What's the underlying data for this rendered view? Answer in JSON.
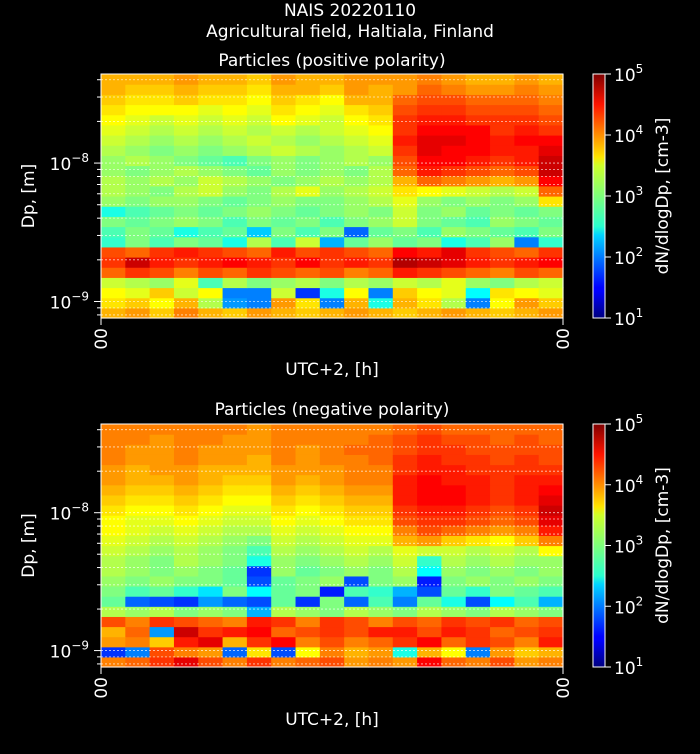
{
  "figure": {
    "title_line1": "NAIS 20220110",
    "title_line2": "Agricultural field, Haltiala, Finland"
  },
  "colors": {
    "background": "#000000",
    "text": "#ffffff",
    "colormap": "jet"
  },
  "chart_data": [
    {
      "type": "heatmap",
      "title": "Particles (positive polarity)",
      "xlabel": "UTC+2, [h]",
      "ylabel": "Dp, [m]",
      "x_tick_labels": [
        "00",
        "00"
      ],
      "y_scale": "log",
      "y_tick_labels": [
        "10^-9",
        "10^-8"
      ],
      "y_ticks": [
        1e-09,
        1e-08
      ],
      "ylim": [
        7.6e-10,
        4.4e-08
      ],
      "colorbar": {
        "label": "dN/dlogDp, [cm-3]",
        "scale": "log",
        "range": [
          10,
          100000
        ],
        "tick_labels": [
          "10^1",
          "10^2",
          "10^3",
          "10^4",
          "10^5"
        ]
      },
      "grid": true,
      "n_time_bins": 19,
      "n_size_bins": 24,
      "log10_values_small_to_large_size": [
        [
          3.8,
          3.9,
          3.7,
          4.0,
          3.8,
          3.7,
          3.9,
          3.8,
          3.7,
          3.8,
          3.9,
          3.8,
          3.7,
          3.8,
          3.9,
          3.8,
          3.7,
          3.8,
          3.9
        ],
        [
          3.6,
          3.7,
          3.5,
          3.8,
          3.2,
          2.1,
          2.0,
          3.9,
          3.6,
          2.0,
          3.8,
          2.6,
          3.8,
          3.6,
          3.2,
          2.0,
          3.5,
          3.9,
          3.7
        ],
        [
          3.5,
          3.4,
          3.7,
          3.3,
          3.5,
          2.0,
          2.0,
          3.3,
          1.7,
          2.6,
          3.5,
          2.0,
          3.7,
          3.5,
          3.4,
          2.5,
          3.6,
          3.5,
          3.4
        ],
        [
          3.3,
          3.2,
          3.1,
          3.4,
          2.8,
          3.2,
          3.0,
          3.1,
          3.2,
          3.0,
          3.2,
          3.1,
          3.3,
          3.2,
          3.4,
          3.1,
          3.0,
          3.2,
          3.3
        ],
        [
          4.1,
          4.3,
          4.2,
          4.0,
          4.2,
          4.1,
          4.3,
          4.2,
          4.1,
          4.2,
          4.0,
          4.1,
          4.4,
          4.3,
          4.2,
          4.1,
          4.0,
          4.2,
          4.1
        ],
        [
          4.3,
          4.7,
          4.4,
          4.3,
          4.4,
          4.5,
          4.4,
          4.3,
          4.5,
          4.3,
          4.4,
          4.3,
          4.8,
          4.7,
          4.6,
          4.4,
          4.3,
          4.4,
          4.5
        ],
        [
          4.2,
          4.1,
          4.3,
          4.4,
          4.3,
          4.2,
          4.1,
          4.4,
          4.2,
          4.3,
          4.2,
          4.1,
          4.5,
          4.4,
          4.6,
          4.3,
          4.2,
          4.1,
          4.3
        ],
        [
          2.7,
          3.0,
          2.8,
          3.0,
          2.9,
          2.6,
          3.2,
          2.8,
          3.3,
          2.2,
          2.9,
          3.1,
          2.9,
          3.0,
          2.6,
          2.8,
          3.1,
          2.0,
          2.7
        ],
        [
          2.8,
          3.0,
          2.9,
          2.6,
          2.8,
          2.9,
          2.3,
          3.0,
          2.8,
          3.0,
          1.9,
          2.9,
          3.0,
          2.8,
          3.1,
          3.0,
          2.9,
          2.8,
          3.0
        ],
        [
          3.0,
          2.9,
          3.0,
          3.1,
          3.0,
          2.8,
          3.0,
          2.9,
          3.0,
          2.8,
          3.0,
          3.1,
          3.3,
          3.0,
          2.9,
          2.8,
          3.1,
          3.0,
          2.9
        ],
        [
          2.6,
          2.8,
          2.9,
          3.0,
          2.9,
          3.0,
          3.1,
          3.0,
          2.9,
          3.0,
          3.1,
          3.0,
          3.3,
          3.0,
          3.1,
          2.9,
          3.0,
          2.9,
          3.0
        ],
        [
          3.1,
          3.0,
          3.1,
          3.1,
          3.0,
          2.9,
          3.0,
          3.1,
          3.0,
          3.0,
          3.1,
          3.2,
          3.4,
          3.1,
          3.0,
          3.1,
          3.0,
          3.1,
          3.6
        ],
        [
          3.2,
          3.1,
          3.0,
          3.2,
          3.3,
          3.1,
          3.0,
          3.2,
          3.4,
          3.1,
          3.2,
          3.3,
          3.6,
          3.5,
          3.4,
          3.3,
          3.2,
          3.3,
          4.1
        ],
        [
          3.2,
          3.1,
          3.2,
          3.1,
          3.3,
          3.2,
          3.1,
          3.0,
          3.1,
          3.2,
          3.1,
          3.2,
          3.8,
          4.1,
          4.0,
          3.9,
          3.8,
          3.9,
          4.5
        ],
        [
          3.1,
          3.0,
          3.1,
          3.2,
          3.1,
          3.0,
          2.9,
          3.1,
          3.0,
          3.1,
          3.0,
          3.2,
          4.1,
          4.4,
          4.3,
          4.2,
          4.1,
          4.2,
          4.7
        ],
        [
          3.1,
          3.2,
          3.1,
          3.0,
          2.9,
          2.8,
          3.0,
          3.1,
          3.0,
          3.1,
          3.2,
          3.1,
          4.2,
          4.5,
          4.5,
          4.4,
          4.3,
          4.4,
          4.7
        ],
        [
          3.2,
          3.1,
          3.0,
          3.1,
          3.0,
          3.1,
          3.2,
          3.3,
          3.2,
          3.1,
          3.2,
          3.3,
          4.3,
          4.6,
          4.5,
          4.5,
          4.4,
          4.4,
          4.6
        ],
        [
          3.3,
          3.2,
          3.1,
          3.2,
          3.1,
          3.2,
          3.3,
          3.2,
          3.1,
          3.2,
          3.3,
          3.4,
          4.4,
          4.6,
          4.6,
          4.5,
          4.4,
          4.5,
          4.5
        ],
        [
          3.4,
          3.3,
          3.2,
          3.3,
          3.2,
          3.3,
          3.2,
          3.3,
          3.2,
          3.3,
          3.4,
          3.5,
          4.3,
          4.5,
          4.5,
          4.5,
          4.3,
          4.4,
          4.3
        ],
        [
          3.5,
          3.4,
          3.3,
          3.4,
          3.3,
          3.4,
          3.3,
          3.5,
          3.4,
          3.3,
          3.5,
          3.6,
          4.3,
          4.4,
          4.4,
          4.3,
          4.3,
          4.3,
          4.2
        ],
        [
          3.6,
          3.5,
          3.5,
          3.5,
          3.4,
          3.5,
          3.4,
          3.6,
          3.5,
          3.4,
          3.6,
          3.7,
          4.2,
          4.3,
          4.3,
          4.2,
          4.2,
          4.2,
          4.1
        ],
        [
          3.7,
          3.6,
          3.6,
          3.7,
          3.6,
          3.6,
          3.5,
          3.7,
          3.6,
          3.5,
          3.8,
          3.8,
          4.1,
          4.2,
          4.2,
          4.1,
          4.1,
          4.1,
          4.0
        ],
        [
          3.8,
          3.7,
          3.7,
          3.8,
          3.7,
          3.7,
          3.6,
          3.8,
          3.8,
          3.7,
          3.9,
          3.8,
          3.9,
          4.1,
          4.0,
          3.9,
          3.9,
          4.0,
          3.9
        ],
        [
          3.8,
          3.8,
          3.8,
          3.9,
          3.8,
          3.8,
          3.7,
          3.9,
          3.8,
          3.8,
          3.9,
          3.9,
          3.9,
          4.0,
          3.9,
          3.8,
          3.8,
          3.9,
          3.8
        ]
      ]
    },
    {
      "type": "heatmap",
      "title": "Particles (negative polarity)",
      "xlabel": "UTC+2, [h]",
      "ylabel": "Dp, [m]",
      "x_tick_labels": [
        "00",
        "00"
      ],
      "y_scale": "log",
      "y_tick_labels": [
        "10^-9",
        "10^-8"
      ],
      "y_ticks": [
        1e-09,
        1e-08
      ],
      "ylim": [
        7.6e-10,
        4.4e-08
      ],
      "colorbar": {
        "label": "dN/dlogDp, [cm-3]",
        "scale": "log",
        "range": [
          10,
          100000
        ],
        "tick_labels": [
          "10^1",
          "10^2",
          "10^3",
          "10^4",
          "10^5"
        ]
      },
      "grid": true,
      "n_time_bins": 19,
      "n_size_bins": 24,
      "log10_values_small_to_large_size": [
        [
          4.0,
          4.1,
          4.3,
          4.6,
          4.2,
          4.0,
          4.3,
          4.0,
          4.1,
          4.2,
          3.9,
          4.0,
          3.9,
          4.5,
          4.1,
          4.0,
          4.2,
          3.9,
          4.0
        ],
        [
          1.7,
          2.0,
          4.2,
          4.0,
          3.9,
          1.9,
          3.6,
          1.8,
          3.5,
          4.0,
          3.8,
          3.9,
          2.6,
          3.8,
          3.5,
          2.0,
          3.9,
          3.7,
          3.8
        ],
        [
          3.9,
          4.0,
          3.7,
          4.4,
          4.6,
          3.8,
          4.3,
          4.5,
          4.0,
          4.2,
          4.0,
          4.1,
          4.3,
          4.5,
          4.1,
          4.3,
          4.2,
          4.0,
          4.4
        ],
        [
          3.8,
          4.1,
          2.1,
          4.7,
          4.3,
          4.4,
          4.5,
          4.1,
          4.2,
          4.3,
          4.2,
          4.4,
          4.4,
          4.2,
          4.4,
          4.3,
          4.1,
          4.2,
          4.3
        ],
        [
          4.2,
          4.0,
          4.3,
          4.2,
          4.1,
          4.0,
          4.4,
          4.3,
          4.0,
          4.3,
          4.2,
          4.0,
          4.2,
          4.1,
          4.3,
          4.2,
          4.3,
          4.1,
          4.2
        ],
        [
          3.2,
          3.1,
          3.2,
          3.0,
          3.1,
          3.0,
          2.2,
          3.2,
          3.1,
          3.0,
          3.2,
          3.1,
          3.0,
          3.2,
          3.1,
          3.0,
          3.2,
          3.1,
          3.0
        ],
        [
          2.9,
          1.9,
          1.8,
          1.7,
          2.1,
          1.9,
          1.8,
          2.9,
          1.7,
          3.0,
          1.9,
          2.8,
          2.0,
          2.9,
          2.6,
          1.8,
          2.5,
          2.8,
          2.2
        ],
        [
          3.0,
          2.8,
          2.9,
          2.7,
          2.4,
          3.0,
          2.5,
          2.9,
          3.0,
          1.6,
          2.8,
          2.7,
          2.2,
          1.8,
          2.9,
          2.7,
          3.0,
          2.9,
          2.8
        ],
        [
          3.1,
          3.0,
          3.1,
          3.0,
          3.0,
          2.9,
          1.8,
          2.9,
          3.0,
          3.1,
          1.8,
          3.0,
          3.1,
          1.6,
          3.0,
          3.1,
          3.0,
          3.1,
          3.0
        ],
        [
          3.2,
          3.1,
          3.0,
          3.1,
          3.0,
          2.9,
          1.7,
          3.1,
          2.9,
          3.0,
          3.1,
          3.0,
          3.2,
          2.5,
          3.1,
          3.0,
          3.1,
          3.0,
          3.1
        ],
        [
          3.2,
          3.1,
          3.0,
          3.2,
          3.1,
          3.0,
          2.6,
          3.1,
          3.0,
          3.1,
          3.2,
          3.1,
          3.3,
          2.7,
          3.2,
          3.1,
          3.2,
          3.1,
          3.1
        ],
        [
          3.3,
          3.2,
          3.1,
          3.2,
          3.1,
          3.0,
          2.8,
          3.2,
          3.1,
          3.2,
          3.3,
          3.2,
          3.4,
          3.3,
          3.3,
          3.2,
          3.3,
          3.2,
          3.5
        ],
        [
          3.4,
          3.3,
          3.2,
          3.3,
          3.2,
          3.1,
          3.0,
          3.3,
          3.2,
          3.3,
          3.4,
          3.4,
          3.8,
          3.9,
          3.7,
          3.6,
          3.5,
          3.7,
          4.0
        ],
        [
          3.5,
          3.4,
          3.3,
          3.4,
          3.3,
          3.2,
          3.2,
          3.4,
          3.3,
          3.4,
          3.5,
          3.5,
          4.0,
          4.2,
          4.1,
          4.0,
          3.9,
          4.0,
          4.4
        ],
        [
          3.5,
          3.4,
          3.4,
          3.5,
          3.4,
          3.3,
          3.3,
          3.5,
          3.4,
          3.5,
          3.6,
          3.6,
          4.2,
          4.3,
          4.3,
          4.2,
          4.1,
          4.2,
          4.6
        ],
        [
          3.6,
          3.5,
          3.5,
          3.6,
          3.5,
          3.4,
          3.4,
          3.6,
          3.5,
          3.6,
          3.7,
          3.7,
          4.3,
          4.4,
          4.4,
          4.3,
          4.2,
          4.3,
          4.7
        ],
        [
          3.7,
          3.6,
          3.6,
          3.7,
          3.6,
          3.5,
          3.5,
          3.7,
          3.6,
          3.7,
          3.8,
          3.8,
          4.4,
          4.5,
          4.5,
          4.4,
          4.3,
          4.4,
          4.6
        ],
        [
          3.8,
          3.7,
          3.7,
          3.8,
          3.7,
          3.6,
          3.6,
          3.8,
          3.7,
          3.8,
          3.9,
          3.9,
          4.4,
          4.5,
          4.5,
          4.4,
          4.3,
          4.4,
          4.5
        ],
        [
          3.9,
          3.8,
          3.8,
          3.9,
          3.8,
          3.7,
          3.7,
          3.9,
          3.8,
          3.9,
          4.0,
          4.0,
          4.4,
          4.5,
          4.4,
          4.4,
          4.3,
          4.4,
          4.4
        ],
        [
          3.9,
          3.8,
          3.9,
          3.9,
          3.8,
          3.8,
          3.8,
          3.9,
          3.9,
          3.9,
          4.0,
          4.0,
          4.3,
          4.4,
          4.4,
          4.3,
          4.3,
          4.3,
          4.3
        ],
        [
          4.0,
          3.9,
          3.9,
          4.0,
          3.9,
          3.9,
          3.8,
          4.0,
          3.9,
          4.0,
          4.0,
          4.1,
          4.3,
          4.4,
          4.3,
          4.3,
          4.2,
          4.3,
          4.2
        ],
        [
          4.0,
          3.9,
          3.9,
          4.0,
          3.9,
          3.9,
          3.9,
          4.0,
          3.9,
          4.0,
          4.1,
          4.1,
          4.2,
          4.3,
          4.3,
          4.2,
          4.2,
          4.2,
          4.2
        ],
        [
          4.0,
          4.0,
          3.9,
          4.0,
          4.0,
          3.9,
          3.9,
          4.0,
          4.0,
          4.0,
          4.0,
          4.1,
          4.2,
          4.3,
          4.2,
          4.2,
          4.1,
          4.2,
          4.1
        ],
        [
          4.0,
          4.0,
          4.0,
          4.0,
          4.0,
          4.0,
          3.9,
          4.0,
          4.0,
          4.0,
          4.0,
          4.0,
          4.1,
          4.2,
          4.1,
          4.1,
          4.1,
          4.1,
          4.1
        ]
      ]
    }
  ]
}
